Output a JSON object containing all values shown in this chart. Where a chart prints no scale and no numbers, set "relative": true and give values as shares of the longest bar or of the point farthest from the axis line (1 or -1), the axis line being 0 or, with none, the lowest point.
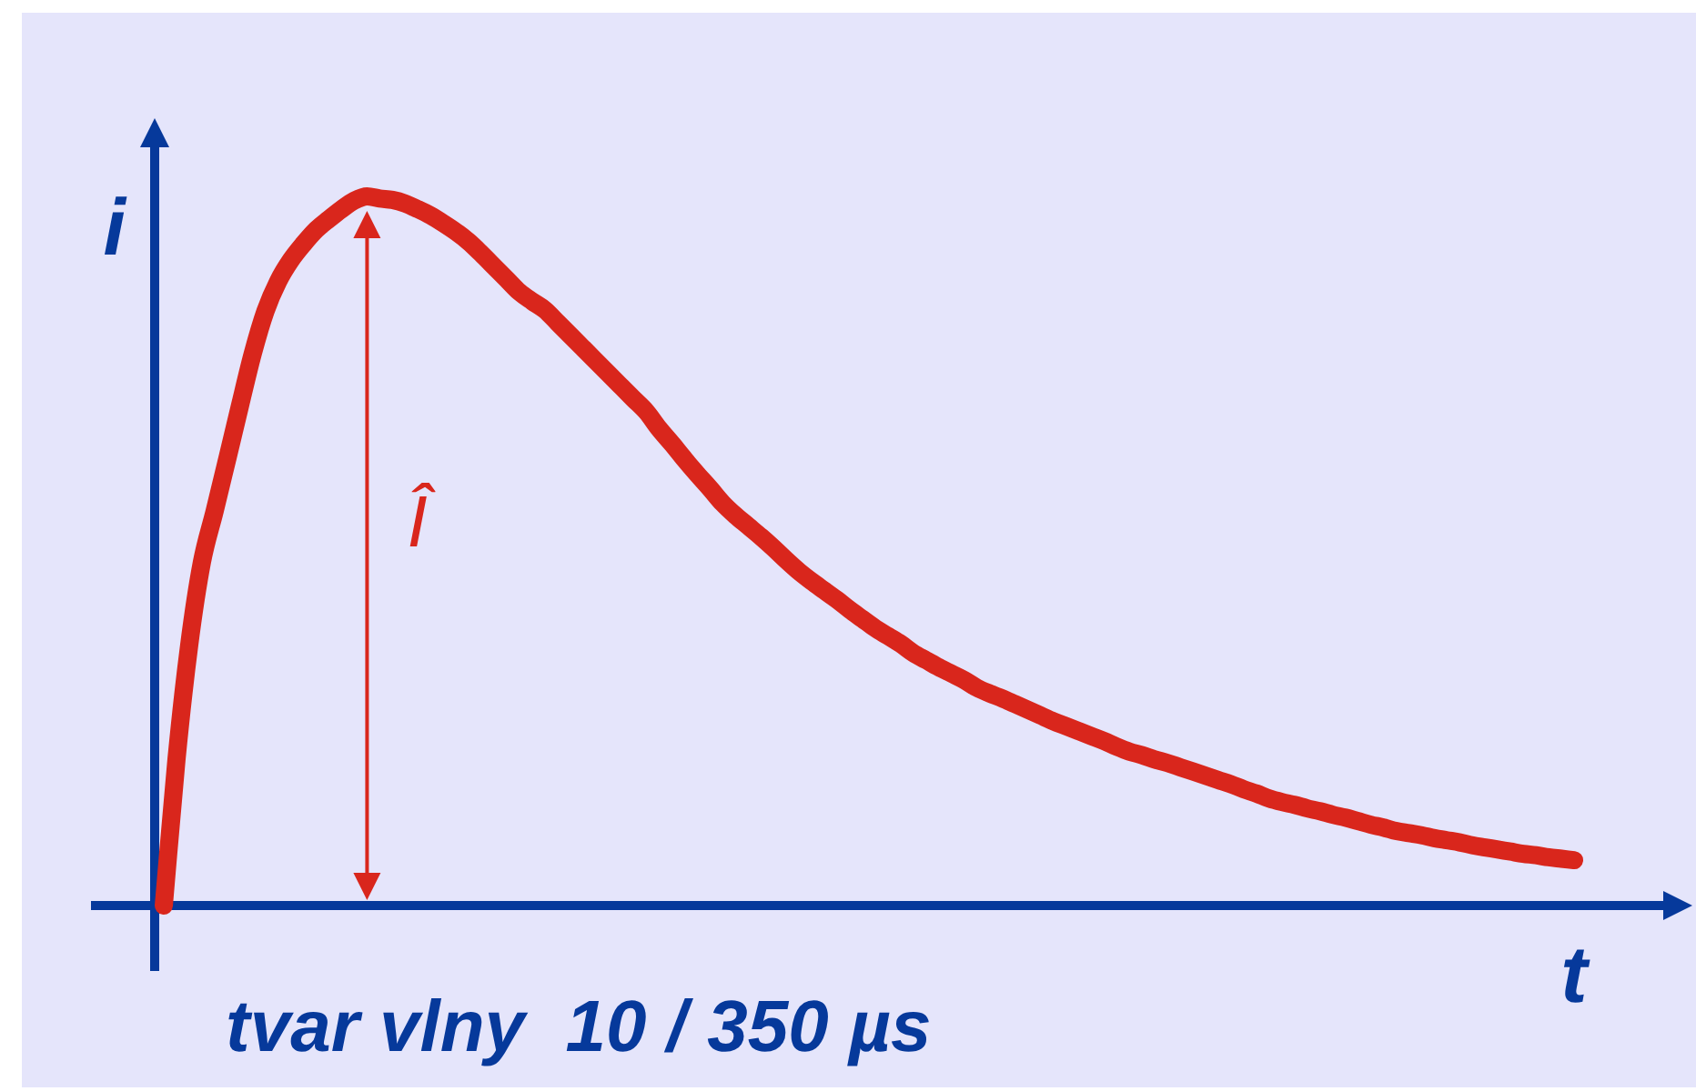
{
  "chart_data": {
    "type": "line",
    "relative": true,
    "title": "tvar vlny  10 / 350 µs",
    "xlabel": "t",
    "ylabel": "i",
    "annotations": [
      "Î"
    ],
    "categories": [
      null,
      null,
      null,
      null,
      null,
      null,
      null,
      null,
      null,
      null,
      null,
      null,
      null,
      null,
      null,
      null,
      null,
      null,
      null,
      null,
      null,
      null,
      null,
      null,
      null,
      null,
      null,
      null,
      null,
      null,
      null,
      null,
      null,
      null,
      null,
      null,
      null,
      null,
      null,
      null,
      null,
      null,
      null,
      null,
      null,
      null,
      null,
      null,
      null,
      null,
      null,
      null,
      null,
      null,
      null,
      null,
      null,
      null,
      null,
      null,
      null,
      null,
      null,
      null,
      null,
      null,
      null,
      null,
      null,
      null,
      null,
      null,
      null,
      null,
      null,
      null,
      null,
      null,
      null,
      null,
      null,
      null,
      null,
      null,
      null,
      null,
      null,
      null,
      null,
      null,
      null,
      null,
      null,
      null,
      null,
      null,
      null,
      null,
      null,
      null,
      null,
      null,
      null,
      null,
      null,
      null,
      null,
      null,
      null,
      null,
      null,
      null
    ],
    "color": "#d9261c",
    "values": [
      0,
      0.206,
      0.367,
      0.484,
      0.556,
      0.63,
      0.705,
      0.778,
      0.838,
      0.88,
      0.91,
      0.933,
      0.953,
      0.968,
      0.982,
      0.994,
      1,
      0.997,
      0.995,
      0.99,
      0.982,
      0.973,
      0.962,
      0.95,
      0.936,
      0.919,
      0.901,
      0.883,
      0.865,
      0.852,
      0.84,
      0.822,
      0.804,
      0.786,
      0.768,
      0.75,
      0.732,
      0.714,
      0.696,
      0.672,
      0.651,
      0.629,
      0.608,
      0.588,
      0.567,
      0.55,
      0.535,
      0.52,
      0.504,
      0.487,
      0.471,
      0.457,
      0.444,
      0.431,
      0.417,
      0.404,
      0.391,
      0.38,
      0.369,
      0.356,
      0.346,
      0.336,
      0.327,
      0.318,
      0.307,
      0.299,
      0.292,
      0.284,
      0.276,
      0.268,
      0.26,
      0.253,
      0.246,
      0.239,
      0.232,
      0.224,
      0.217,
      0.212,
      0.206,
      0.201,
      0.195,
      0.189,
      0.183,
      0.177,
      0.171,
      0.164,
      0.158,
      0.151,
      0.146,
      0.142,
      0.137,
      0.133,
      0.128,
      0.124,
      0.119,
      0.114,
      0.11,
      0.105,
      0.102,
      0.099,
      0.095,
      0.092,
      0.089,
      0.085,
      0.082,
      0.079,
      0.076,
      0.073,
      0.071,
      0.068,
      0.066,
      0.064
    ],
    "line_style": "solid"
  }
}
